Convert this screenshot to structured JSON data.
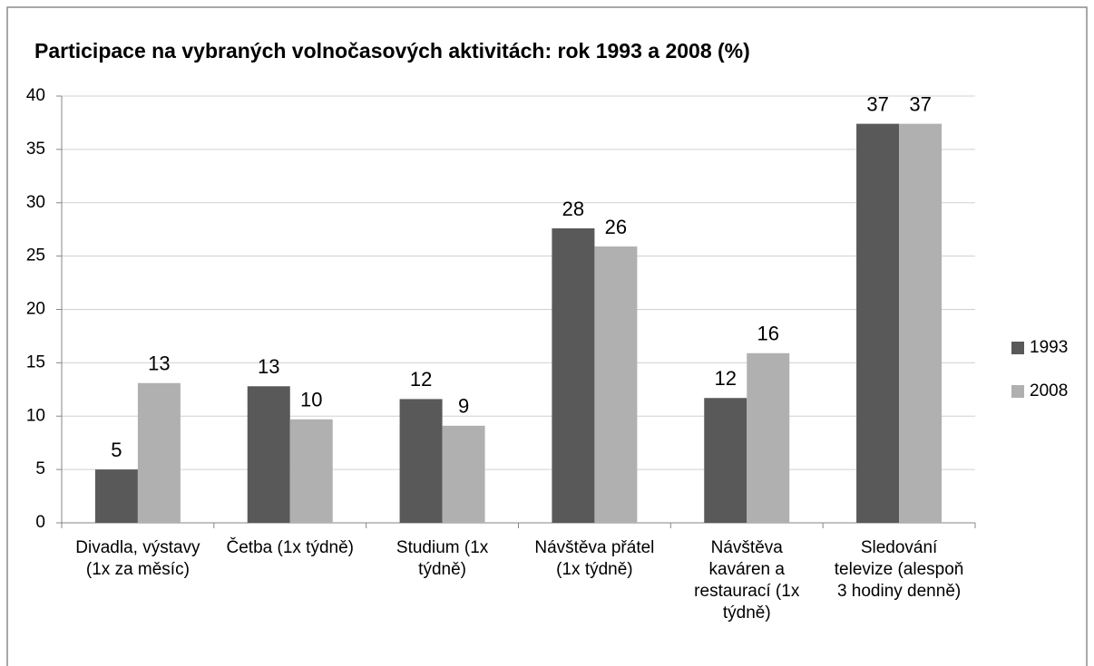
{
  "chart_data": {
    "type": "bar",
    "title": "Participace na vybraných volnočasových aktivitách: rok 1993 a 2008 (%)",
    "categories": [
      "Divadla, výstavy (1x za měsíc)",
      "Četba (1x týdně)",
      "Studium (1x týdně)",
      "Návštěva přátel (1x týdně)",
      "Návštěva kaváren a restaurací (1x týdně)",
      "Sledování televize (alespoň 3 hodiny denně)"
    ],
    "series": [
      {
        "name": "1993",
        "color": "#595959",
        "values": [
          5.0,
          12.8,
          11.6,
          27.6,
          11.7,
          37.4
        ],
        "value_labels": [
          "5",
          "13",
          "12",
          "28",
          "12",
          "37"
        ]
      },
      {
        "name": "2008",
        "color": "#b0b0b0",
        "values": [
          13.1,
          9.7,
          9.1,
          25.9,
          15.9,
          37.4
        ],
        "value_labels": [
          "13",
          "10",
          "9",
          "26",
          "16",
          "37"
        ]
      }
    ],
    "ylim": [
      0,
      40
    ],
    "yticks": [
      0,
      5,
      10,
      15,
      20,
      25,
      30,
      35,
      40
    ],
    "grid": true,
    "legend": "right"
  }
}
